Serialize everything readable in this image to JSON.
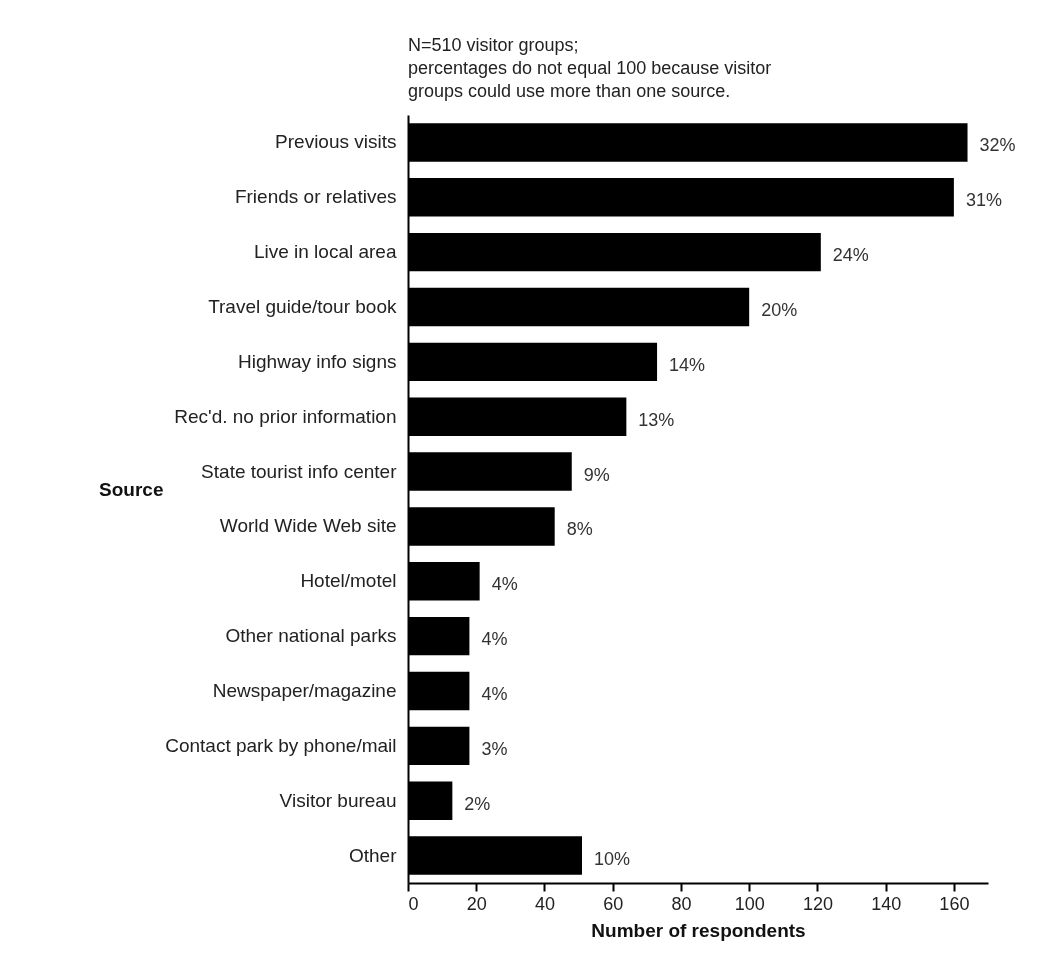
{
  "chart_data": {
    "type": "bar",
    "orientation": "horizontal",
    "title": "N=510 visitor groups; percentages do not equal 100 because visitor groups could use more than one source.",
    "xlabel": "Number of respondents",
    "ylabel": "Source",
    "categories": [
      "Previous visits",
      "Friends or relatives",
      "Live in local area",
      "Travel guide/tour book",
      "Highway info signs",
      "Rec'd. no prior information",
      "State tourist info center",
      "World Wide Web site",
      "Hotel/motel",
      "Other national parks",
      "Newspaper/magazine",
      "Contact park by phone/mail",
      "Visitor bureau",
      "Other"
    ],
    "values": [
      164,
      160,
      121,
      100,
      73,
      64,
      48,
      43,
      21,
      18,
      18,
      18,
      13,
      51
    ],
    "annotations": [
      {
        "text": "32%",
        "x": 164,
        "y": "Previous visits"
      },
      {
        "text": "31%",
        "x": 160,
        "y": "Friends or relatives"
      },
      {
        "text": "24%",
        "x": 121,
        "y": "Live in local area"
      },
      {
        "text": "20%",
        "x": 100,
        "y": "Travel guide/tour book"
      },
      {
        "text": "14%",
        "x": 73,
        "y": "Highway info signs"
      },
      {
        "text": "13%",
        "x": 64,
        "y": "Rec'd. no prior information"
      },
      {
        "text": "9%",
        "x": 48,
        "y": "State tourist info center"
      },
      {
        "text": "8%",
        "x": 43,
        "y": "World Wide Web site"
      },
      {
        "text": "4%",
        "x": 21,
        "y": "Hotel/motel"
      },
      {
        "text": "4%",
        "x": 18,
        "y": "Other national parks"
      },
      {
        "text": "4%",
        "x": 18,
        "y": "Newspaper/magazine"
      },
      {
        "text": "3%",
        "x": 18,
        "y": "Contact park by phone/mail"
      },
      {
        "text": "2%",
        "x": 13,
        "y": "Visitor bureau"
      },
      {
        "text": "10%",
        "x": 51,
        "y": "Other"
      }
    ],
    "color": "#000000",
    "xlim": [
      0,
      170
    ],
    "xticks": [
      0,
      20,
      40,
      60,
      80,
      100,
      120,
      140,
      160
    ],
    "grid": false
  }
}
